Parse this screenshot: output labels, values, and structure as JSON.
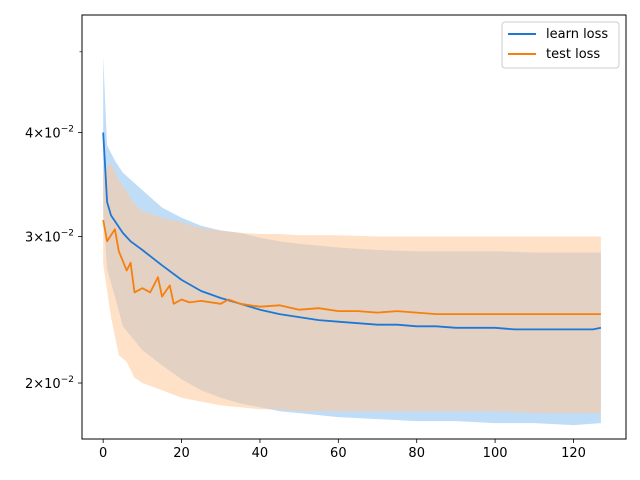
{
  "chart_data": {
    "type": "line",
    "title": "",
    "xlabel": "",
    "ylabel": "",
    "y_scale": "log",
    "xlim": [
      -5.4,
      133.4
    ],
    "ylim": [
      0.01713,
      0.05536
    ],
    "grid": false,
    "legend_position": "top-right",
    "x_ticks": [
      0,
      20,
      40,
      60,
      80,
      100,
      120
    ],
    "x_tick_labels": [
      "0",
      "20",
      "40",
      "60",
      "80",
      "100",
      "120"
    ],
    "y_ticks": [
      0.02,
      0.03,
      0.04
    ],
    "y_tick_labels": [
      {
        "base": "2",
        "exp": "−2"
      },
      {
        "base": "3",
        "exp": "−2"
      },
      {
        "base": "4",
        "exp": "−2"
      }
    ],
    "y_tick_base": "10",
    "y_tick_times": "×",
    "series": [
      {
        "name": "learn loss",
        "color": "#1f77d4",
        "band_color": "#9ecbf5",
        "mean": [
          [
            0,
            0.04
          ],
          [
            1,
            0.033
          ],
          [
            2,
            0.0318
          ],
          [
            3,
            0.0313
          ],
          [
            5,
            0.0303
          ],
          [
            7,
            0.0296
          ],
          [
            10,
            0.0289
          ],
          [
            15,
            0.0277
          ],
          [
            20,
            0.0266
          ],
          [
            25,
            0.0258
          ],
          [
            30,
            0.0253
          ],
          [
            35,
            0.0249
          ],
          [
            40,
            0.0245
          ],
          [
            45,
            0.0242
          ],
          [
            50,
            0.024
          ],
          [
            55,
            0.0238
          ],
          [
            60,
            0.0237
          ],
          [
            65,
            0.0236
          ],
          [
            70,
            0.0235
          ],
          [
            75,
            0.0235
          ],
          [
            80,
            0.0234
          ],
          [
            85,
            0.0234
          ],
          [
            90,
            0.0233
          ],
          [
            95,
            0.0233
          ],
          [
            100,
            0.0233
          ],
          [
            105,
            0.0232
          ],
          [
            110,
            0.0232
          ],
          [
            115,
            0.0232
          ],
          [
            120,
            0.0232
          ],
          [
            125,
            0.0232
          ],
          [
            127,
            0.0233
          ]
        ],
        "upper": [
          [
            0,
            0.0493
          ],
          [
            1,
            0.0386
          ],
          [
            3,
            0.037
          ],
          [
            5,
            0.0358
          ],
          [
            10,
            0.0341
          ],
          [
            15,
            0.0325
          ],
          [
            20,
            0.0316
          ],
          [
            25,
            0.0309
          ],
          [
            30,
            0.0305
          ],
          [
            35,
            0.0303
          ],
          [
            40,
            0.0299
          ],
          [
            45,
            0.0296
          ],
          [
            50,
            0.0294
          ],
          [
            60,
            0.0291
          ],
          [
            70,
            0.0289
          ],
          [
            80,
            0.0288
          ],
          [
            90,
            0.0288
          ],
          [
            100,
            0.0288
          ],
          [
            110,
            0.0287
          ],
          [
            120,
            0.0287
          ],
          [
            127,
            0.0287
          ]
        ],
        "lower": [
          [
            0,
            0.032
          ],
          [
            1,
            0.0274
          ],
          [
            3,
            0.0254
          ],
          [
            5,
            0.0234
          ],
          [
            10,
            0.0219
          ],
          [
            15,
            0.021
          ],
          [
            20,
            0.0202
          ],
          [
            25,
            0.0196
          ],
          [
            30,
            0.0192
          ],
          [
            35,
            0.0189
          ],
          [
            40,
            0.0187
          ],
          [
            45,
            0.0185
          ],
          [
            50,
            0.0184
          ],
          [
            60,
            0.0182
          ],
          [
            70,
            0.0181
          ],
          [
            80,
            0.018
          ],
          [
            90,
            0.018
          ],
          [
            100,
            0.0179
          ],
          [
            110,
            0.0179
          ],
          [
            120,
            0.0178
          ],
          [
            127,
            0.0179
          ]
        ]
      },
      {
        "name": "test loss",
        "color": "#f77f0e",
        "band_color": "#ffc999",
        "mean": [
          [
            0,
            0.0314
          ],
          [
            1,
            0.0296
          ],
          [
            3,
            0.0306
          ],
          [
            4,
            0.0288
          ],
          [
            6,
            0.0273
          ],
          [
            7,
            0.0279
          ],
          [
            8,
            0.0257
          ],
          [
            10,
            0.026
          ],
          [
            12,
            0.0257
          ],
          [
            14,
            0.0268
          ],
          [
            15,
            0.0254
          ],
          [
            17,
            0.0262
          ],
          [
            18,
            0.0249
          ],
          [
            20,
            0.0252
          ],
          [
            22,
            0.025
          ],
          [
            25,
            0.0251
          ],
          [
            30,
            0.0249
          ],
          [
            32,
            0.0252
          ],
          [
            35,
            0.0249
          ],
          [
            40,
            0.0247
          ],
          [
            45,
            0.0248
          ],
          [
            50,
            0.0245
          ],
          [
            55,
            0.0246
          ],
          [
            60,
            0.0244
          ],
          [
            65,
            0.0244
          ],
          [
            70,
            0.0243
          ],
          [
            75,
            0.0244
          ],
          [
            80,
            0.0243
          ],
          [
            85,
            0.0242
          ],
          [
            90,
            0.0242
          ],
          [
            95,
            0.0242
          ],
          [
            100,
            0.0242
          ],
          [
            105,
            0.0242
          ],
          [
            110,
            0.0242
          ],
          [
            115,
            0.0242
          ],
          [
            120,
            0.0242
          ],
          [
            125,
            0.0242
          ],
          [
            127,
            0.0242
          ]
        ],
        "upper": [
          [
            0,
            0.0358
          ],
          [
            2,
            0.0368
          ],
          [
            4,
            0.035
          ],
          [
            6,
            0.034
          ],
          [
            8,
            0.0328
          ],
          [
            10,
            0.0322
          ],
          [
            15,
            0.0316
          ],
          [
            20,
            0.0312
          ],
          [
            25,
            0.0307
          ],
          [
            30,
            0.0305
          ],
          [
            35,
            0.0303
          ],
          [
            40,
            0.0302
          ],
          [
            45,
            0.0302
          ],
          [
            50,
            0.0301
          ],
          [
            60,
            0.0301
          ],
          [
            70,
            0.03
          ],
          [
            80,
            0.03
          ],
          [
            90,
            0.03
          ],
          [
            100,
            0.03
          ],
          [
            110,
            0.03
          ],
          [
            120,
            0.03
          ],
          [
            127,
            0.03
          ]
        ],
        "lower": [
          [
            0,
            0.0278
          ],
          [
            2,
            0.024
          ],
          [
            4,
            0.0216
          ],
          [
            6,
            0.0212
          ],
          [
            8,
            0.0203
          ],
          [
            10,
            0.02
          ],
          [
            15,
            0.0196
          ],
          [
            20,
            0.0192
          ],
          [
            25,
            0.019
          ],
          [
            30,
            0.0188
          ],
          [
            35,
            0.0187
          ],
          [
            40,
            0.0186
          ],
          [
            45,
            0.0186
          ],
          [
            50,
            0.0185
          ],
          [
            60,
            0.0185
          ],
          [
            70,
            0.0185
          ],
          [
            80,
            0.0185
          ],
          [
            90,
            0.0185
          ],
          [
            100,
            0.0185
          ],
          [
            110,
            0.0184
          ],
          [
            120,
            0.0184
          ],
          [
            127,
            0.0184
          ]
        ]
      }
    ]
  }
}
